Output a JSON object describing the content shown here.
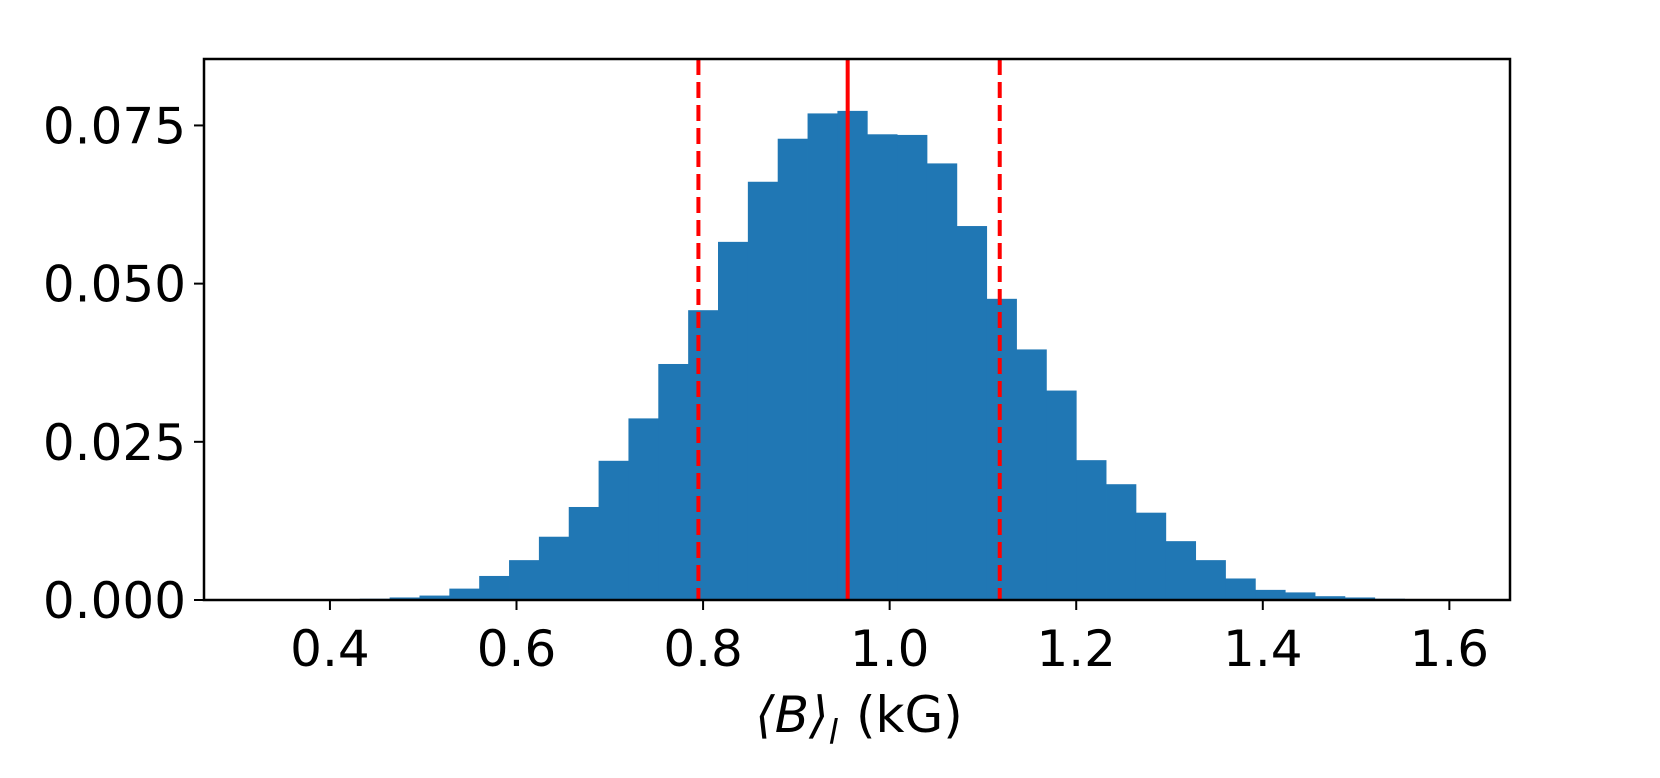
{
  "chart_data": {
    "type": "bar",
    "title": "",
    "xlabel": "⟨B⟩",
    "xlabel_subscript": "l",
    "xlabel_unit": "(kG)",
    "ylabel": "",
    "xlim": [
      0.265,
      1.665
    ],
    "ylim": [
      0,
      0.0855
    ],
    "grid": false,
    "legend": "none",
    "xticks": [
      0.4,
      0.6,
      0.8,
      1.0,
      1.2,
      1.4,
      1.6
    ],
    "xtick_labels": [
      "0.4",
      "0.6",
      "0.8",
      "1.0",
      "1.2",
      "1.4",
      "1.6"
    ],
    "yticks": [
      0.0,
      0.025,
      0.05,
      0.075
    ],
    "ytick_labels": [
      "0.000",
      "0.025",
      "0.050",
      "0.075"
    ],
    "bin_start": 0.4,
    "bin_width": 0.032,
    "series": [
      {
        "values": [
          0.0001,
          0.0002,
          0.0004,
          0.0007,
          0.0018,
          0.0038,
          0.0063,
          0.01,
          0.0147,
          0.022,
          0.0287,
          0.0373,
          0.0458,
          0.0566,
          0.0661,
          0.0729,
          0.0769,
          0.0773,
          0.0736,
          0.0735,
          0.069,
          0.0591,
          0.0476,
          0.0396,
          0.0331,
          0.0221,
          0.0183,
          0.0138,
          0.0093,
          0.0063,
          0.0034,
          0.0016,
          0.0012,
          0.0006,
          0.0004,
          0.0002,
          0.0001
        ],
        "color": "#2077b4"
      }
    ],
    "vlines": [
      {
        "x": 0.955,
        "style": "solid",
        "color": "#ff0000"
      },
      {
        "x": 0.795,
        "style": "dashed",
        "color": "#ff0000"
      },
      {
        "x": 1.118,
        "style": "dashed",
        "color": "#ff0000"
      }
    ]
  }
}
